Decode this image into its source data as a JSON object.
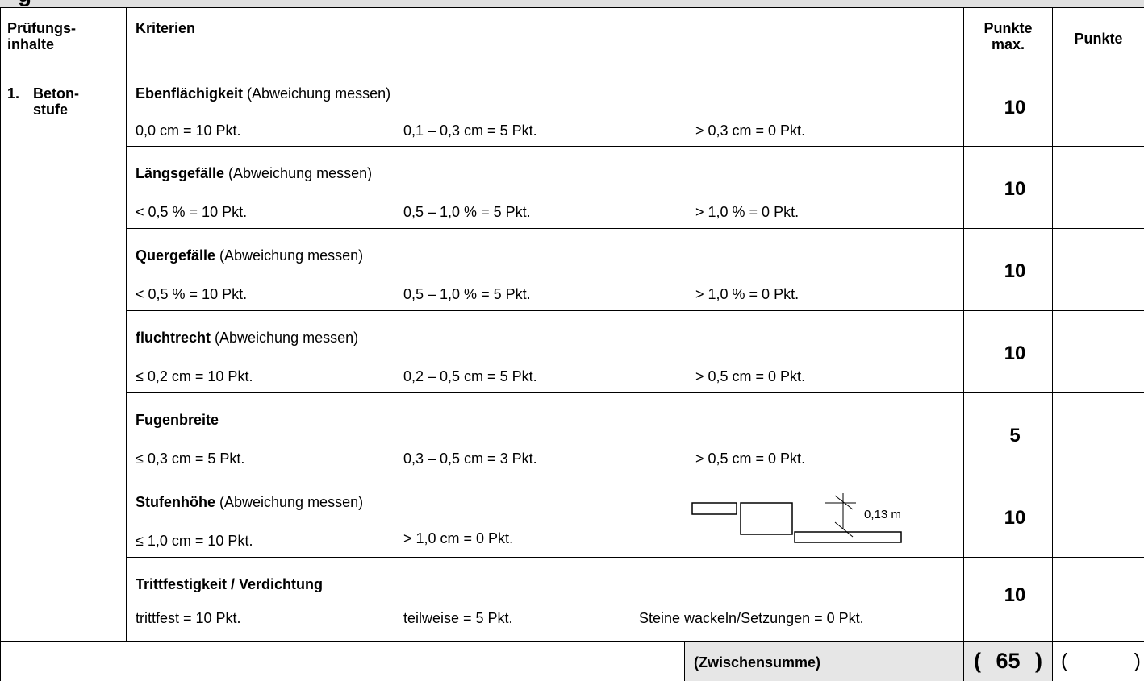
{
  "section_title_partial": "g",
  "header": {
    "col1_line1": "Prüfungs-",
    "col1_line2": "inhalte",
    "col2": "Kriterien",
    "col3_line1": "Punkte",
    "col3_line2": "max.",
    "col4": "Punkte"
  },
  "section": {
    "number": "1.",
    "name_line1": "Beton-",
    "name_line2": "stufe"
  },
  "criteria": [
    {
      "title": "Ebenflächigkeit",
      "note": " (Abweichung messen)",
      "c1": "0,0 cm = 10 Pkt.",
      "c2": "0,1 – 0,3 cm = 5 Pkt.",
      "c3": "> 0,3 cm = 0 Pkt.",
      "max": "10"
    },
    {
      "title": "Längsgefälle",
      "note": " (Abweichung messen)",
      "c1": "< 0,5 % = 10 Pkt.",
      "c2": "0,5 – 1,0 % = 5 Pkt.",
      "c3": "> 1,0 % = 0 Pkt.",
      "max": "10"
    },
    {
      "title": "Quergefälle",
      "note": " (Abweichung messen)",
      "c1": "< 0,5 % = 10 Pkt.",
      "c2": "0,5 – 1,0 % = 5 Pkt.",
      "c3": "> 1,0 % = 0 Pkt.",
      "max": "10"
    },
    {
      "title": "fluchtrecht",
      "note": " (Abweichung messen)",
      "c1": "≤ 0,2 cm = 10 Pkt.",
      "c2": "0,2 – 0,5 cm = 5 Pkt.",
      "c3": "> 0,5 cm = 0 Pkt.",
      "max": "10"
    },
    {
      "title": "Fugenbreite",
      "note": "",
      "c1": "≤ 0,3 cm = 5 Pkt.",
      "c2": "0,3 – 0,5 cm = 3 Pkt.",
      "c3": "> 0,5 cm = 0 Pkt.",
      "max": "5"
    },
    {
      "title": "Stufenhöhe",
      "note": " (Abweichung messen)",
      "c1": "≤ 1,0 cm = 10 Pkt.",
      "c2": "> 1,0 cm = 0 Pkt.",
      "c3": "",
      "max": "10",
      "diagram_label": "0,13 m"
    },
    {
      "title": "Trittfestigkeit / Verdichtung",
      "note": "",
      "c1": "trittfest = 10 Pkt.",
      "c2": "teilweise = 5 Pkt.",
      "c3": "Steine wackeln/Setzungen = 0 Pkt.",
      "max": "10"
    }
  ],
  "footer": {
    "label": "(Zwischensumme)",
    "open_paren": "(",
    "total": "65",
    "close_paren": ")",
    "score_open": "(",
    "score_close": ")"
  },
  "colors": {
    "header_gray": "#e0e0e0",
    "footer_gray": "#e6e6e6"
  }
}
